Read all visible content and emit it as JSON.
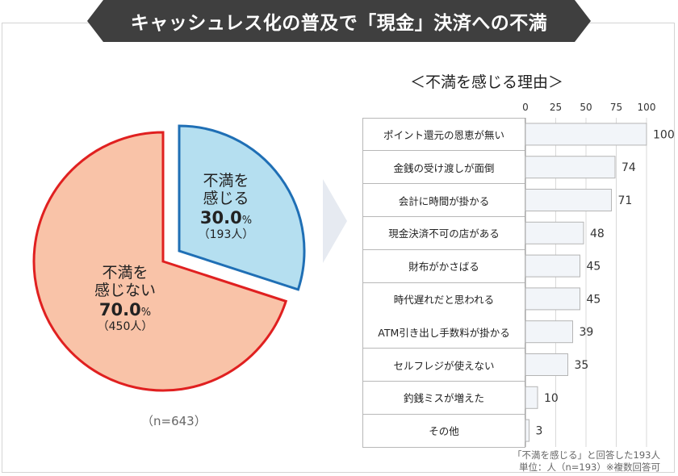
{
  "title": "キャッシュレス化の普及で「現金」決済への不満",
  "colors": {
    "banner": "#3f3f3f",
    "dissatisfied_fill": "#b5dff0",
    "dissatisfied_stroke": "#1f6fb5",
    "not_dissatisfied_fill": "#f9c3a8",
    "not_dissatisfied_stroke": "#e02020",
    "bar_fill": "#f2f5f9",
    "bar_stroke": "#b5b5b5"
  },
  "chart_data": [
    {
      "type": "pie",
      "n_note": "（n=643）",
      "slices": [
        {
          "label_line1": "不満を",
          "label_line2": "感じる",
          "pct_value": "30.0",
          "pct_unit": "%",
          "count": "（193人）",
          "value": 30.0
        },
        {
          "label_line1": "不満を",
          "label_line2": "感じない",
          "pct_value": "70.0",
          "pct_unit": "%",
          "count": "（450人）",
          "value": 70.0
        }
      ]
    },
    {
      "type": "bar",
      "orientation": "horizontal",
      "title": "＜不満を感じる理由＞",
      "categories": [
        "ポイント還元の恩恵が無い",
        "金銭の受け渡しが面倒",
        "会計に時間が掛かる",
        "現金決済不可の店がある",
        "財布がかさばる",
        "時代遅れだと思われる",
        "ATM引き出し手数料が掛かる",
        "セルフレジが使えない",
        "釣銭ミスが増えた",
        "その他"
      ],
      "values": [
        100,
        74,
        71,
        48,
        45,
        45,
        39,
        35,
        10,
        3
      ],
      "xlim": [
        0,
        100
      ],
      "ticks": [
        "0",
        "25",
        "50",
        "75",
        "100"
      ],
      "tick_values": [
        0,
        25,
        50,
        75,
        100
      ],
      "footnote1": "「不満を感じる」と回答した193人",
      "footnote2": "単位：人（n=193）※複数回答可"
    }
  ]
}
